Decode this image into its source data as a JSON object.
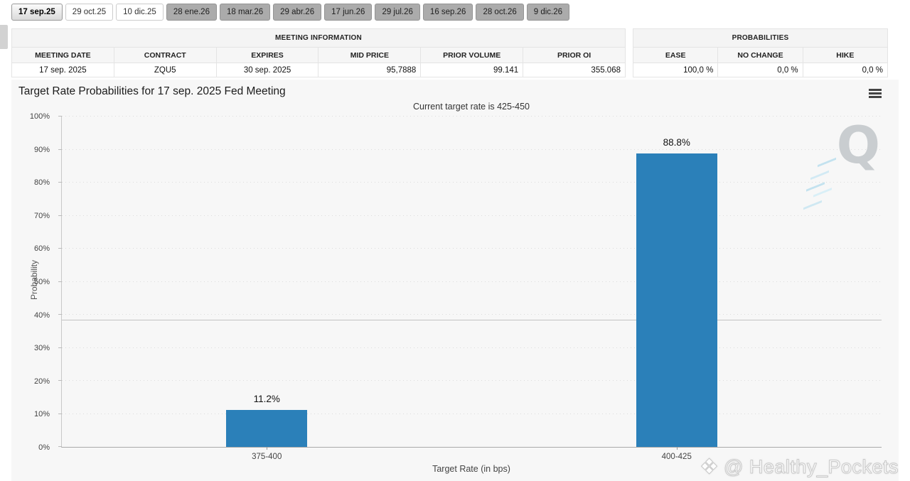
{
  "tabs": [
    {
      "label": "17 sep.25",
      "state": "selected"
    },
    {
      "label": "29 oct.25",
      "state": "open"
    },
    {
      "label": "10 dic.25",
      "state": "open"
    },
    {
      "label": "28 ene.26",
      "state": "closed"
    },
    {
      "label": "18 mar.26",
      "state": "closed"
    },
    {
      "label": "29 abr.26",
      "state": "closed"
    },
    {
      "label": "17 jun.26",
      "state": "closed"
    },
    {
      "label": "29 jul.26",
      "state": "closed"
    },
    {
      "label": "16 sep.26",
      "state": "closed"
    },
    {
      "label": "28 oct.26",
      "state": "closed"
    },
    {
      "label": "9 dic.26",
      "state": "closed"
    }
  ],
  "meeting_info": {
    "title": "MEETING INFORMATION",
    "columns": [
      "MEETING DATE",
      "CONTRACT",
      "EXPIRES",
      "MID PRICE",
      "PRIOR VOLUME",
      "PRIOR OI"
    ],
    "values": [
      "17 sep. 2025",
      "ZQU5",
      "30 sep. 2025",
      "95,7888",
      "99.141",
      "355.068"
    ]
  },
  "probabilities": {
    "title": "PROBABILITIES",
    "columns": [
      "EASE",
      "NO CHANGE",
      "HIKE"
    ],
    "values": [
      "100,0 %",
      "0,0 %",
      "0,0 %"
    ]
  },
  "chart": {
    "title": "Target Rate Probabilities for 17 sep. 2025 Fed Meeting",
    "subtitle": "Current target rate is 425-450",
    "menu_icon": "hamburger-menu-icon"
  },
  "chart_data": {
    "type": "bar",
    "categories": [
      "375-400",
      "400-425"
    ],
    "values": [
      11.2,
      88.8
    ],
    "data_labels": [
      "11.2%",
      "88.8%"
    ],
    "title": "Target Rate Probabilities for 17 sep. 2025 Fed Meeting",
    "subtitle": "Current target rate is 425-450",
    "xlabel": "Target Rate (in bps)",
    "ylabel": "Probability",
    "ylim": [
      0,
      100
    ],
    "y_tick_step": 10,
    "y_tick_suffix": "%",
    "grid": "dotted-horizontal",
    "reference_line_y": 38.2,
    "bar_color": "#2b80b9",
    "legend": "none"
  },
  "branding": {
    "quikstrike_logo": "Q",
    "watermark_icon": "❖",
    "watermark_handle": "@ Healthy_Pockets"
  }
}
